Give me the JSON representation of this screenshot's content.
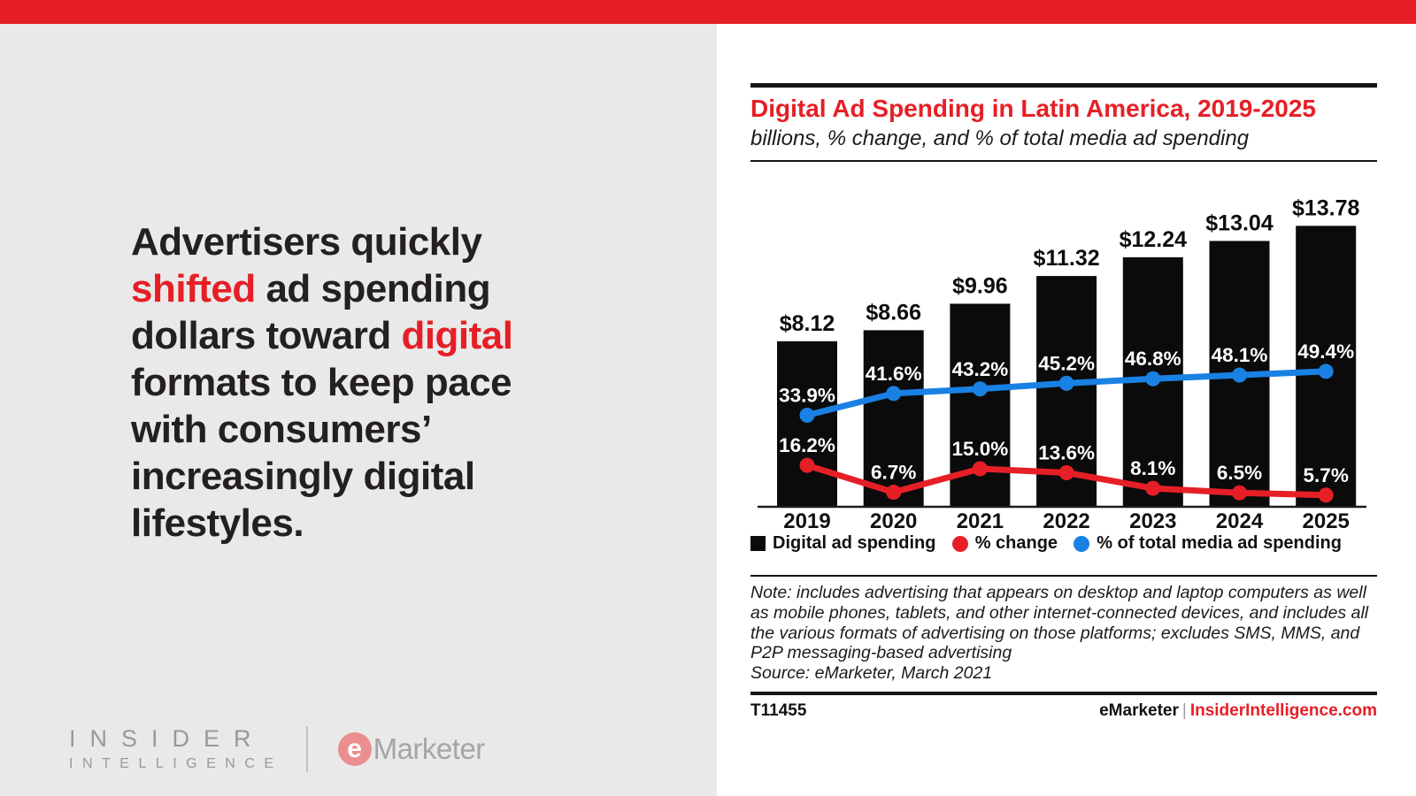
{
  "colors": {
    "red": "#e61f26",
    "blue": "#1981e3",
    "bar": "#0b0b0b",
    "panel_gray": "#e9e9e9"
  },
  "headline": {
    "lines": [
      [
        {
          "t": "Advertisers quickly",
          "red": false
        }
      ],
      [
        {
          "t": "shifted",
          "red": true
        },
        {
          "t": " ad spending",
          "red": false
        }
      ],
      [
        {
          "t": "dollars toward ",
          "red": false
        },
        {
          "t": "digital",
          "red": true
        }
      ],
      [
        {
          "t": "formats to keep pace",
          "red": false
        }
      ],
      [
        {
          "t": "with consumers’",
          "red": false
        }
      ],
      [
        {
          "t": "increasingly digital",
          "red": false
        }
      ],
      [
        {
          "t": "lifestyles.",
          "red": false
        }
      ]
    ]
  },
  "brand": {
    "insider_line1": "INSIDER",
    "insider_line2": "INTELLIGENCE",
    "emarketer_e": "e",
    "emarketer_word": "Marketer"
  },
  "chart": {
    "title": "Digital Ad Spending in Latin America, 2019-2025",
    "subtitle": "billions, % change, and % of total media ad spending",
    "legend": [
      {
        "label": "Digital ad spending"
      },
      {
        "label": "% change"
      },
      {
        "label": "% of total media ad spending"
      }
    ],
    "note_lines": [
      "Note: includes advertising that appears on desktop and laptop computers as well",
      "as mobile phones, tablets, and other internet-connected devices, and includes all",
      "the various formats of advertising on those platforms; excludes SMS, MMS, and",
      "P2P messaging-based advertising"
    ],
    "source": "Source: eMarketer, March 2021",
    "footer_id": "T11455",
    "footer_brand": "eMarketer",
    "footer_pipe": "|",
    "footer_site": "InsiderIntelligence.com"
  },
  "chart_data": {
    "type": "bar",
    "categories": [
      "2019",
      "2020",
      "2021",
      "2022",
      "2023",
      "2024",
      "2025"
    ],
    "bar_series": {
      "name": "Digital ad spending",
      "unit": "billions",
      "values": [
        8.12,
        8.66,
        9.96,
        11.32,
        12.24,
        13.04,
        13.78
      ],
      "labels": [
        "$8.12",
        "$8.66",
        "$9.96",
        "$11.32",
        "$12.24",
        "$13.04",
        "$13.78"
      ]
    },
    "line_series": [
      {
        "name": "% of total media ad spending",
        "color_key": "blue",
        "values": [
          33.9,
          41.6,
          43.2,
          45.2,
          46.8,
          48.1,
          49.4
        ],
        "labels": [
          "33.9%",
          "41.6%",
          "43.2%",
          "45.2%",
          "46.8%",
          "48.1%",
          "49.4%"
        ]
      },
      {
        "name": "% change",
        "color_key": "red",
        "values": [
          16.2,
          6.7,
          15.0,
          13.6,
          8.1,
          6.5,
          5.7
        ],
        "labels": [
          "16.2%",
          "6.7%",
          "15.0%",
          "13.6%",
          "8.1%",
          "6.5%",
          "5.7%"
        ]
      }
    ],
    "title": "Digital Ad Spending in Latin America, 2019-2025",
    "subtitle": "billions, % change, and % of total media ad spending",
    "xlabel": "",
    "ylabel": "",
    "grid": false,
    "legend_position": "bottom"
  }
}
